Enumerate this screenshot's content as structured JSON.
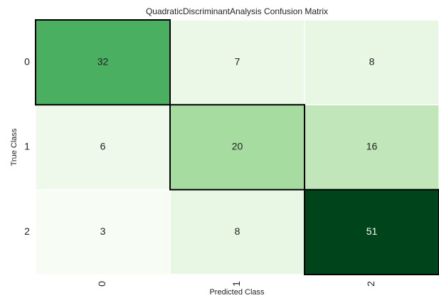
{
  "chart_data": {
    "type": "heatmap",
    "title": "QuadraticDiscriminantAnalysis Confusion Matrix",
    "x_label": "Predicted Class",
    "y_label": "True Class",
    "x_categories": [
      "0",
      "1",
      "2"
    ],
    "y_categories": [
      "0",
      "1",
      "2"
    ],
    "values": [
      [
        32,
        7,
        8
      ],
      [
        6,
        20,
        16
      ],
      [
        3,
        8,
        51
      ]
    ],
    "colormap": [
      "#f7fcf5",
      "#e5f5e0",
      "#c7e9c0",
      "#a1d99b",
      "#74c476",
      "#41ab5d",
      "#238b45",
      "#006d2c",
      "#00441b"
    ]
  }
}
